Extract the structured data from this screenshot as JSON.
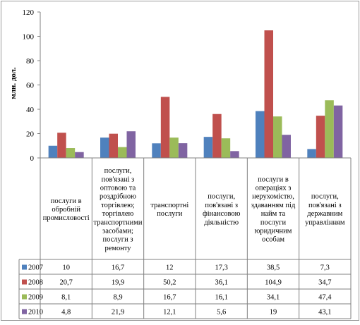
{
  "chart_data": {
    "type": "bar",
    "ylabel": "млн. дол.",
    "ylim": [
      0,
      120
    ],
    "yticks": [
      0,
      20,
      40,
      60,
      80,
      100,
      120
    ],
    "grid": false,
    "legend": "table-left",
    "categories": [
      [
        "послуги в",
        "обробній",
        "промисловості"
      ],
      [
        "послуги,",
        "пов'язані з",
        "оптовою та",
        "роздрібною",
        "торгівлею;",
        "торгівлею",
        "транспортними",
        "засобами;",
        "послуги з",
        "ремонту"
      ],
      [
        "транспортні",
        "послуги"
      ],
      [
        "послуги,",
        "пов'язані з",
        "фінансовою",
        "діяльністю"
      ],
      [
        "послуги в",
        "операціях з",
        "нерухомістю,",
        "здаванням під",
        "найм та",
        "послуги",
        "юридичним",
        "особам"
      ],
      [
        "послуги,",
        "пов'язані з",
        "державним",
        "управлінням"
      ]
    ],
    "series": [
      {
        "name": "2007",
        "color": "#4f81bd",
        "values": [
          10,
          16.7,
          12,
          17.3,
          38.5,
          7.3
        ],
        "labels": [
          "10",
          "16,7",
          "12",
          "17,3",
          "38,5",
          "7,3"
        ]
      },
      {
        "name": "2008",
        "color": "#c0504d",
        "values": [
          20.7,
          19.9,
          50.2,
          36.1,
          104.9,
          34.7
        ],
        "labels": [
          "20,7",
          "19,9",
          "50,2",
          "36,1",
          "104,9",
          "34,7"
        ]
      },
      {
        "name": "2009",
        "color": "#9bbb59",
        "values": [
          8.1,
          8.9,
          16.7,
          16.1,
          34.1,
          47.4
        ],
        "labels": [
          "8,1",
          "8,9",
          "16,7",
          "16,1",
          "34,1",
          "47,4"
        ]
      },
      {
        "name": "2010",
        "color": "#8064a2",
        "values": [
          4.8,
          21.9,
          12.1,
          5.6,
          19,
          43.1
        ],
        "labels": [
          "4,8",
          "21,9",
          "12,1",
          "5,6",
          "19",
          "43,1"
        ]
      }
    ]
  }
}
